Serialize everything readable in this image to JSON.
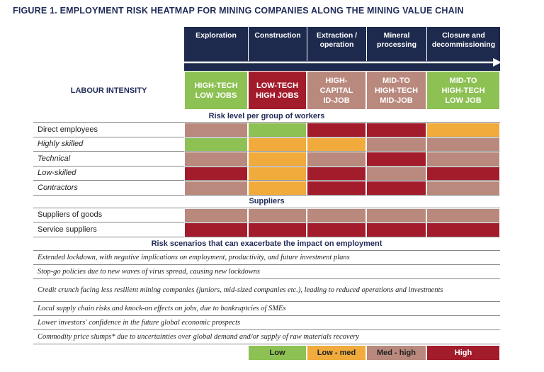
{
  "title": "FIGURE 1. EMPLOYMENT RISK HEATMAP FOR MINING COMPANIES ALONG THE MINING VALUE CHAIN",
  "columns": [
    [
      "Exploration"
    ],
    [
      "Construction"
    ],
    [
      "Extraction /",
      "operation"
    ],
    [
      "Mineral",
      "processing"
    ],
    [
      "Closure and",
      "decommissioning"
    ]
  ],
  "labour_intensity": {
    "label": "LABOUR INTENSITY",
    "cells": [
      {
        "lines": [
          "HIGH-TECH",
          "LOW JOBS"
        ],
        "color": "#8dc153"
      },
      {
        "lines": [
          "LOW-TECH",
          "HIGH JOBS"
        ],
        "color": "#a31c2c"
      },
      {
        "lines": [
          "HIGH-",
          "CAPITAL",
          "ID-JOB"
        ],
        "color": "#b9897e"
      },
      {
        "lines": [
          "MID-TO",
          "HIGH-TECH",
          "MID-JOB"
        ],
        "color": "#b9897e"
      },
      {
        "lines": [
          "MID-TO",
          "HIGH-TECH",
          "LOW JOB"
        ],
        "color": "#8dc153"
      }
    ]
  },
  "sections": [
    {
      "heading": "Risk level per group of workers",
      "rows": [
        {
          "label": "Direct employees",
          "italic": false,
          "colors": [
            "#b9897e",
            "#8dc153",
            "#a31c2c",
            "#a31c2c",
            "#f0ab3c"
          ]
        },
        {
          "label": "Highly skilled",
          "italic": true,
          "colors": [
            "#8dc153",
            "#f0ab3c",
            "#f0ab3c",
            "#b9897e",
            "#b9897e"
          ]
        },
        {
          "label": "Technical",
          "italic": true,
          "colors": [
            "#b9897e",
            "#f0ab3c",
            "#b9897e",
            "#a31c2c",
            "#b9897e"
          ]
        },
        {
          "label": "Low-skilled",
          "italic": true,
          "colors": [
            "#a31c2c",
            "#f0ab3c",
            "#a31c2c",
            "#b9897e",
            "#a31c2c"
          ]
        },
        {
          "label": "Contractors",
          "italic": true,
          "colors": [
            "#b9897e",
            "#f0ab3c",
            "#a31c2c",
            "#a31c2c",
            "#b9897e"
          ]
        }
      ]
    },
    {
      "heading": "Suppliers",
      "rows": [
        {
          "label": "Suppliers of goods",
          "italic": false,
          "colors": [
            "#b9897e",
            "#b9897e",
            "#b9897e",
            "#b9897e",
            "#b9897e"
          ]
        },
        {
          "label": "Service suppliers",
          "italic": false,
          "colors": [
            "#a31c2c",
            "#a31c2c",
            "#a31c2c",
            "#a31c2c",
            "#a31c2c"
          ]
        }
      ]
    }
  ],
  "scenarios": {
    "heading": "Risk scenarios that can exacerbate the impact on employment",
    "items": [
      "Extended lockdown, with negative implications on employment, productivity, and future investment plans",
      "Stop-go policies due to new waves of virus spread, causing new lockdowns",
      "Credit crunch facing less resilient mining companies (juniors, mid-sized companies etc.), leading to reduced operations and investments",
      "Local supply chain risks and knock-on effects on jobs, due to bankruptcies of SMEs",
      "Lower investors' confidence in the future global economic prospects",
      "Commodity price slumps* due to uncertainties over global demand and/or supply of raw materials recovery"
    ]
  },
  "legend": [
    {
      "label": "Low",
      "color": "#8dc153"
    },
    {
      "label": "Low - med",
      "color": "#f0ab3c"
    },
    {
      "label": "Med - high",
      "color": "#b9897e"
    },
    {
      "label": "High",
      "color": "#a31c2c"
    }
  ]
}
